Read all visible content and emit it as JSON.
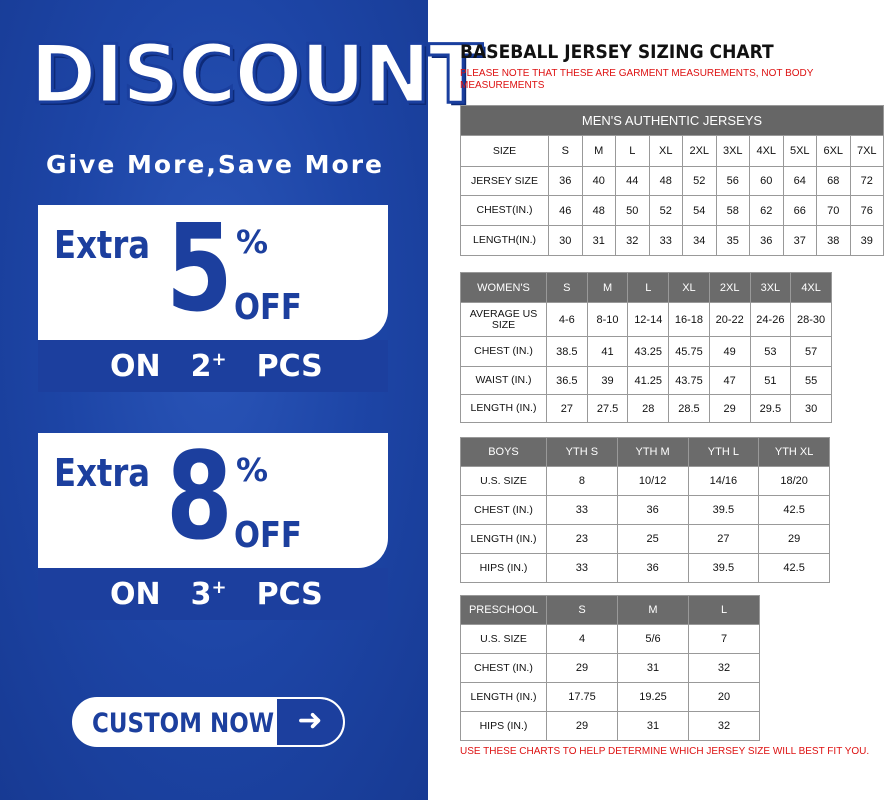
{
  "promo": {
    "headline": "DISCOUNT",
    "tagline": "Give More,Save More",
    "offers": [
      {
        "extra": "Extra",
        "number": "5",
        "percent": "%",
        "off": "OFF",
        "on": "ON",
        "qty": "2",
        "plus": "+",
        "pcs": "PCS"
      },
      {
        "extra": "Extra",
        "number": "8",
        "percent": "%",
        "off": "OFF",
        "on": "ON",
        "qty": "3",
        "plus": "+",
        "pcs": "PCS"
      }
    ],
    "cta": "CUSTOM NOW",
    "cta_icon": "arrow-right-icon",
    "colors": {
      "brand_blue": "#1c3f9e",
      "white": "#ffffff"
    }
  },
  "chart": {
    "title": "BASEBALL JERSEY SIZING CHART",
    "note": "PLEASE NOTE THAT THESE ARE GARMENT MEASUREMENTS, NOT BODY MEASUREMENTS",
    "footer": "USE THESE CHARTS TO HELP DETERMINE WHICH JERSEY SIZE WILL BEST FIT YOU.",
    "colors": {
      "header_gray": "#6b6b6b",
      "note_red": "#dd1111"
    }
  },
  "tables": {
    "men": {
      "caption": "MEN'S AUTHENTIC JERSEYS",
      "header": [
        "SIZE",
        "S",
        "M",
        "L",
        "XL",
        "2XL",
        "3XL",
        "4XL",
        "5XL",
        "6XL",
        "7XL"
      ],
      "rows": [
        [
          "JERSEY SIZE",
          "36",
          "40",
          "44",
          "48",
          "52",
          "56",
          "60",
          "64",
          "68",
          "72"
        ],
        [
          "CHEST(IN.)",
          "46",
          "48",
          "50",
          "52",
          "54",
          "58",
          "62",
          "66",
          "70",
          "76"
        ],
        [
          "LENGTH(IN.)",
          "30",
          "31",
          "32",
          "33",
          "34",
          "35",
          "36",
          "37",
          "38",
          "39"
        ]
      ]
    },
    "women": {
      "header": [
        "WOMEN'S",
        "S",
        "M",
        "L",
        "XL",
        "2XL",
        "3XL",
        "4XL"
      ],
      "rows": [
        [
          "AVERAGE US SIZE",
          "4-6",
          "8-10",
          "12-14",
          "16-18",
          "20-22",
          "24-26",
          "28-30"
        ],
        [
          "CHEST (IN.)",
          "38.5",
          "41",
          "43.25",
          "45.75",
          "49",
          "53",
          "57"
        ],
        [
          "WAIST (IN.)",
          "36.5",
          "39",
          "41.25",
          "43.75",
          "47",
          "51",
          "55"
        ],
        [
          "LENGTH (IN.)",
          "27",
          "27.5",
          "28",
          "28.5",
          "29",
          "29.5",
          "30"
        ]
      ]
    },
    "boys": {
      "header": [
        "BOYS",
        "YTH S",
        "YTH M",
        "YTH L",
        "YTH XL"
      ],
      "rows": [
        [
          "U.S. SIZE",
          "8",
          "10/12",
          "14/16",
          "18/20"
        ],
        [
          "CHEST (IN.)",
          "33",
          "36",
          "39.5",
          "42.5"
        ],
        [
          "LENGTH (IN.)",
          "23",
          "25",
          "27",
          "29"
        ],
        [
          "HIPS (IN.)",
          "33",
          "36",
          "39.5",
          "42.5"
        ]
      ]
    },
    "preschool": {
      "header": [
        "PRESCHOOL",
        "S",
        "M",
        "L"
      ],
      "rows": [
        [
          "U.S. SIZE",
          "4",
          "5/6",
          "7"
        ],
        [
          "CHEST (IN.)",
          "29",
          "31",
          "32"
        ],
        [
          "LENGTH (IN.)",
          "17.75",
          "19.25",
          "20"
        ],
        [
          "HIPS (IN.)",
          "29",
          "31",
          "32"
        ]
      ]
    }
  }
}
